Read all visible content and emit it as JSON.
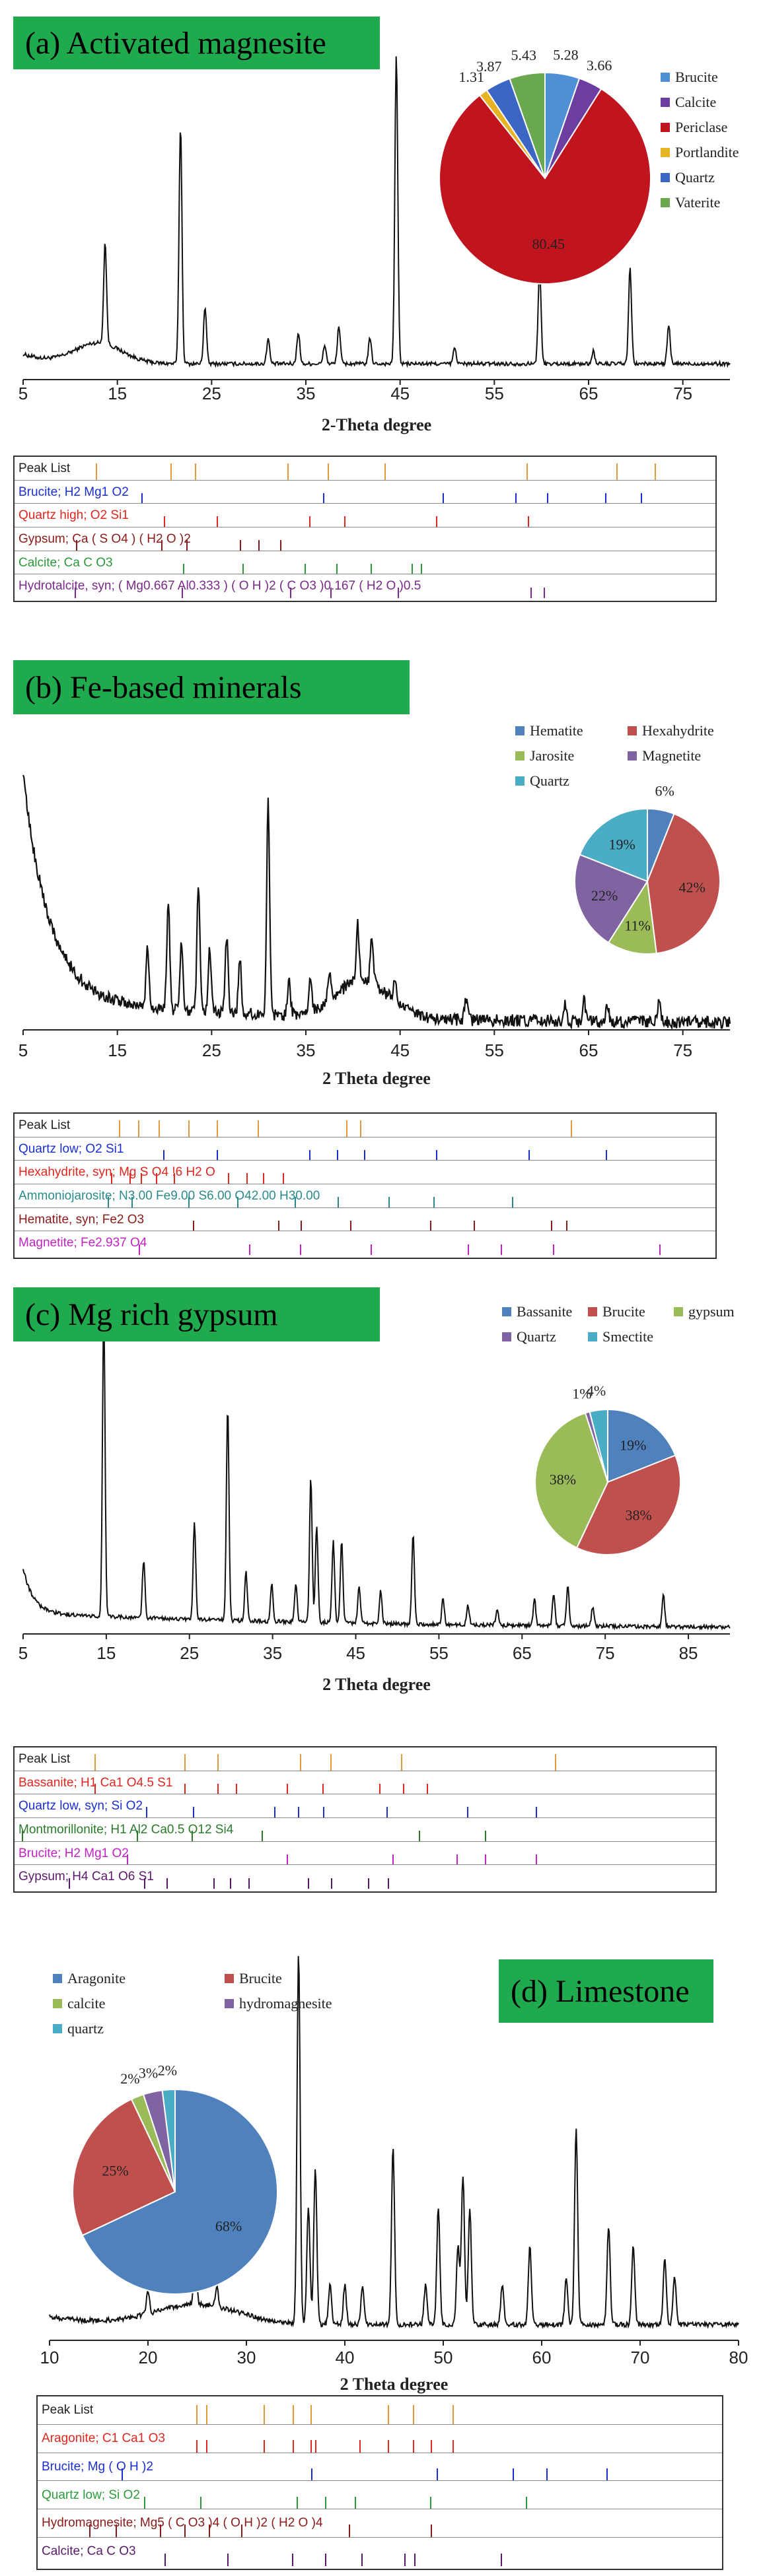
{
  "chart_data": [
    {
      "type": "line",
      "title": "(a) Activated magnesite",
      "xlabel": "2-Theta degree",
      "xlim": [
        5,
        80
      ],
      "x_ticks": [
        "5",
        "15",
        "25",
        "35",
        "45",
        "55",
        "65",
        "75"
      ],
      "peaks": [
        [
          13.7,
          0.32
        ],
        [
          21.7,
          0.75
        ],
        [
          24.3,
          0.18
        ],
        [
          31.0,
          0.08
        ],
        [
          34.2,
          0.1
        ],
        [
          37.0,
          0.06
        ],
        [
          38.5,
          0.12
        ],
        [
          41.8,
          0.08
        ],
        [
          44.6,
          0.97
        ],
        [
          50.8,
          0.05
        ],
        [
          59.8,
          0.3
        ],
        [
          65.5,
          0.04
        ],
        [
          69.4,
          0.3
        ],
        [
          73.5,
          0.12
        ]
      ],
      "pie": {
        "labels": [
          "Brucite",
          "Calcite",
          "Periclase",
          "Portlandite",
          "Quartz",
          "Vaterite"
        ],
        "values": [
          5.28,
          3.66,
          80.45,
          1.31,
          3.87,
          5.43
        ],
        "label_text": [
          "5.28",
          "3.66",
          "80.45",
          "1.31",
          "3.87",
          "5.43"
        ],
        "colors": [
          "#4f8fd5",
          "#6b3ea0",
          "#c0141e",
          "#e6b422",
          "#3b66c4",
          "#6aa84f"
        ]
      },
      "peak_list": [
        {
          "text": "Peak List",
          "color": "#222222",
          "lines": [
            13.7,
            21.7,
            24.3,
            34.2,
            38.5,
            44.6,
            59.8,
            69.4,
            73.5
          ],
          "line_color": "#e49a3b"
        },
        {
          "text": "Brucite; H2 Mg1 O2",
          "color": "#1a2fd1",
          "lines": [
            18.6,
            38.0,
            50.8,
            58.6,
            62.0,
            68.2,
            72.0
          ],
          "line_color": "#1a2fd1"
        },
        {
          "text": "Quartz high; O2 Si1",
          "color": "#e0261e",
          "lines": [
            21.0,
            26.6,
            36.5,
            40.3,
            50.1,
            59.9
          ],
          "line_color": "#e0261e"
        },
        {
          "text": "Gypsum; Ca ( S O4 ) ( H2 O )2",
          "color": "#8b1a1a",
          "lines": [
            11.6,
            20.7,
            23.4,
            29.1,
            31.1,
            33.4
          ],
          "line_color": "#8b1a1a"
        },
        {
          "text": "Calcite; Ca C O3",
          "color": "#2a9a3a",
          "lines": [
            23.0,
            29.4,
            36.0,
            39.4,
            43.1,
            47.5,
            48.5
          ],
          "line_color": "#2a9a3a"
        },
        {
          "text": "Hydrotalcite, syn; ( Mg0.667 Al0.333 ) ( O H )2 ( C O3 )0.167 ( H2 O )0.5",
          "color": "#7a2a8a",
          "lines": [
            11.4,
            22.9,
            34.5,
            38.8,
            46.0,
            60.2,
            61.6
          ],
          "line_color": "#7a2a8a"
        }
      ]
    },
    {
      "type": "line",
      "title": "(b) Fe-based minerals",
      "xlabel": "2 Theta degree",
      "xlim": [
        5,
        80
      ],
      "x_ticks": [
        "5",
        "15",
        "25",
        "35",
        "45",
        "55",
        "65",
        "75"
      ],
      "peaks": [
        [
          18.2,
          0.2
        ],
        [
          20.4,
          0.35
        ],
        [
          21.8,
          0.22
        ],
        [
          23.6,
          0.4
        ],
        [
          24.8,
          0.2
        ],
        [
          26.6,
          0.25
        ],
        [
          28.0,
          0.18
        ],
        [
          31.0,
          0.7
        ],
        [
          33.2,
          0.12
        ],
        [
          35.5,
          0.1
        ],
        [
          37.5,
          0.1
        ],
        [
          40.5,
          0.18
        ],
        [
          42.0,
          0.15
        ],
        [
          44.5,
          0.08
        ],
        [
          52.0,
          0.06
        ],
        [
          62.5,
          0.06
        ],
        [
          64.5,
          0.07
        ],
        [
          67.0,
          0.05
        ],
        [
          72.5,
          0.07
        ]
      ],
      "pie": {
        "labels": [
          "Hematite",
          "Hexahydrite",
          "Jarosite",
          "Magnetite",
          "Quartz"
        ],
        "values": [
          6,
          42,
          11,
          22,
          19
        ],
        "label_text": [
          "6%",
          "42%",
          "11%",
          "22%",
          "19%"
        ],
        "colors": [
          "#4f81bd",
          "#c0504d",
          "#9bbb59",
          "#8064a2",
          "#4bacc6"
        ]
      },
      "peak_list": [
        {
          "text": "Peak List",
          "color": "#222222",
          "lines": [
            16.2,
            18.2,
            20.4,
            23.6,
            26.6,
            31.0,
            40.5,
            42.0,
            64.5
          ],
          "line_color": "#e49a3b"
        },
        {
          "text": "Quartz low; O2 Si1",
          "color": "#1a2fd1",
          "lines": [
            20.9,
            26.6,
            36.5,
            39.5,
            42.4,
            50.1,
            60.0,
            68.3
          ],
          "line_color": "#1a2fd1"
        },
        {
          "text": "Hexahydrite, syn; Mg S O4 !6 H2 O",
          "color": "#e0261e",
          "lines": [
            15.3,
            17.3,
            18.5,
            20.1,
            22.0,
            27.8,
            29.8,
            31.6,
            33.7
          ],
          "line_color": "#e0261e"
        },
        {
          "text": "Ammoniojarosite; N3.00 Fe9.00 S6.00 O42.00 H30.00",
          "color": "#2a8a8a",
          "lines": [
            15.0,
            17.5,
            23.6,
            28.8,
            35.0,
            39.6,
            45.0,
            49.8,
            58.2
          ],
          "line_color": "#2a8a8a"
        },
        {
          "text": "Hematite, syn; Fe2 O3",
          "color": "#8b1a1a",
          "lines": [
            24.1,
            33.2,
            35.6,
            40.9,
            49.5,
            54.1,
            62.4,
            64.0
          ],
          "line_color": "#8b1a1a"
        },
        {
          "text": "Magnetite; Fe2.937 O4",
          "color": "#c023c0",
          "lines": [
            18.3,
            30.1,
            35.5,
            43.1,
            53.5,
            57.0,
            62.6,
            74.0
          ],
          "line_color": "#c023c0"
        }
      ]
    },
    {
      "type": "line",
      "title": "(c) Mg rich gypsum",
      "xlabel": "2 Theta degree",
      "xlim": [
        5,
        90
      ],
      "x_ticks": [
        "5",
        "15",
        "25",
        "35",
        "45",
        "55",
        "65",
        "75",
        "85"
      ],
      "peaks": [
        [
          14.7,
          0.95
        ],
        [
          19.5,
          0.18
        ],
        [
          25.6,
          0.3
        ],
        [
          29.6,
          0.66
        ],
        [
          31.8,
          0.15
        ],
        [
          34.9,
          0.12
        ],
        [
          37.8,
          0.12
        ],
        [
          39.6,
          0.45
        ],
        [
          40.3,
          0.3
        ],
        [
          42.3,
          0.25
        ],
        [
          43.3,
          0.25
        ],
        [
          45.4,
          0.12
        ],
        [
          48.0,
          0.1
        ],
        [
          51.9,
          0.28
        ],
        [
          55.5,
          0.08
        ],
        [
          58.5,
          0.06
        ],
        [
          62.0,
          0.05
        ],
        [
          66.5,
          0.08
        ],
        [
          68.8,
          0.1
        ],
        [
          70.5,
          0.12
        ],
        [
          73.5,
          0.06
        ],
        [
          82.0,
          0.1
        ]
      ],
      "pie": {
        "labels": [
          "Bassanite",
          "Brucite",
          "gypsum",
          "Quartz",
          "Smectite"
        ],
        "values": [
          19,
          38,
          38,
          1,
          4
        ],
        "label_text": [
          "19%",
          "38%",
          "38%",
          "1%",
          "4%"
        ],
        "colors": [
          "#4f81bd",
          "#c0504d",
          "#9bbb59",
          "#8064a2",
          "#4bacc6"
        ]
      },
      "peak_list": [
        {
          "text": "Peak List",
          "color": "#222222",
          "lines": [
            14.7,
            25.6,
            29.6,
            39.6,
            43.3,
            51.9,
            70.5
          ],
          "line_color": "#e49a3b"
        },
        {
          "text": "Bassanite; H1 Ca1 O4.5 S1",
          "color": "#e0261e",
          "lines": [
            14.7,
            25.6,
            29.6,
            31.8,
            38.0,
            42.3,
            49.2,
            52.1,
            55.0
          ],
          "line_color": "#e0261e"
        },
        {
          "text": "Quartz low, syn; Si O2",
          "color": "#1a2fd1",
          "lines": [
            20.9,
            26.6,
            36.5,
            39.4,
            42.4,
            50.1,
            59.9,
            68.2
          ],
          "line_color": "#1a2fd1"
        },
        {
          "text": "Montmorillonite; H1 Al2 Ca0.5 O12 Si4",
          "color": "#2a7a2a",
          "lines": [
            5.9,
            19.8,
            26.5,
            35.0,
            54.0,
            62.0
          ],
          "line_color": "#2a7a2a"
        },
        {
          "text": "Brucite; H2 Mg1 O2",
          "color": "#c023c0",
          "lines": [
            18.6,
            38.0,
            50.8,
            58.6,
            62.0,
            68.2
          ],
          "line_color": "#c023c0"
        },
        {
          "text": "Gypsum; H4 Ca1 O6 S1",
          "color": "#5a1a6a",
          "lines": [
            11.6,
            20.7,
            23.4,
            29.1,
            31.1,
            33.4,
            40.6,
            43.4,
            47.9,
            50.3
          ],
          "line_color": "#5a1a6a"
        }
      ]
    },
    {
      "type": "line",
      "title": "(d) Limestone",
      "xlabel": "2 Theta degree",
      "xlim": [
        10,
        80
      ],
      "x_ticks": [
        "10",
        "20",
        "30",
        "40",
        "50",
        "60",
        "70",
        "80"
      ],
      "peaks": [
        [
          20.0,
          0.06
        ],
        [
          24.8,
          0.12
        ],
        [
          27.0,
          0.05
        ],
        [
          35.3,
          0.95
        ],
        [
          36.3,
          0.3
        ],
        [
          37.0,
          0.4
        ],
        [
          38.5,
          0.1
        ],
        [
          40.0,
          0.1
        ],
        [
          41.8,
          0.1
        ],
        [
          44.9,
          0.45
        ],
        [
          48.2,
          0.1
        ],
        [
          49.5,
          0.3
        ],
        [
          51.5,
          0.2
        ],
        [
          52.0,
          0.38
        ],
        [
          52.7,
          0.3
        ],
        [
          56.0,
          0.1
        ],
        [
          58.8,
          0.2
        ],
        [
          62.5,
          0.12
        ],
        [
          63.5,
          0.5
        ],
        [
          66.8,
          0.25
        ],
        [
          69.3,
          0.2
        ],
        [
          72.5,
          0.17
        ],
        [
          73.5,
          0.12
        ]
      ],
      "pie": {
        "labels": [
          "Aragonite",
          "Brucite",
          "calcite",
          "hydromagnesite",
          "quartz"
        ],
        "values": [
          68,
          25,
          2,
          3,
          2
        ],
        "label_text": [
          "68%",
          "25%",
          "2%",
          "3%",
          "2%"
        ],
        "colors": [
          "#4f81bd",
          "#c0504d",
          "#9bbb59",
          "#8064a2",
          "#4bacc6"
        ]
      },
      "peak_list": [
        {
          "text": "Peak List",
          "color": "#222222",
          "lines": [
            26.2,
            27.2,
            33.1,
            36.1,
            37.9,
            45.8,
            48.4,
            52.4
          ],
          "line_color": "#e49a3b"
        },
        {
          "text": "Aragonite; C1 Ca1 O3",
          "color": "#e0261e",
          "lines": [
            26.2,
            27.2,
            33.1,
            36.1,
            37.9,
            38.4,
            42.9,
            45.8,
            48.4,
            50.2,
            52.4
          ],
          "line_color": "#e0261e"
        },
        {
          "text": "Brucite; Mg ( O H )2",
          "color": "#1a2fd1",
          "lines": [
            18.6,
            38.0,
            50.8,
            58.6,
            62.0,
            68.2
          ],
          "line_color": "#1a2fd1"
        },
        {
          "text": "Quartz low; Si O2",
          "color": "#2a9a3a",
          "lines": [
            20.9,
            26.6,
            36.5,
            39.4,
            42.4,
            50.1,
            59.9
          ],
          "line_color": "#2a9a3a"
        },
        {
          "text": "Hydromagnesite; Mg5 ( C O3 )4 ( O H )2 ( H2 O )4",
          "color": "#8b1a1a",
          "lines": [
            15.3,
            18.0,
            22.5,
            25.0,
            27.5,
            30.8,
            41.8,
            50.2
          ],
          "line_color": "#8b1a1a"
        },
        {
          "text": "Calcite; Ca C O3",
          "color": "#5a1a6a",
          "lines": [
            23.0,
            29.4,
            36.0,
            39.4,
            43.1,
            47.5,
            48.5,
            57.4
          ],
          "line_color": "#5a1a6a"
        }
      ]
    }
  ]
}
